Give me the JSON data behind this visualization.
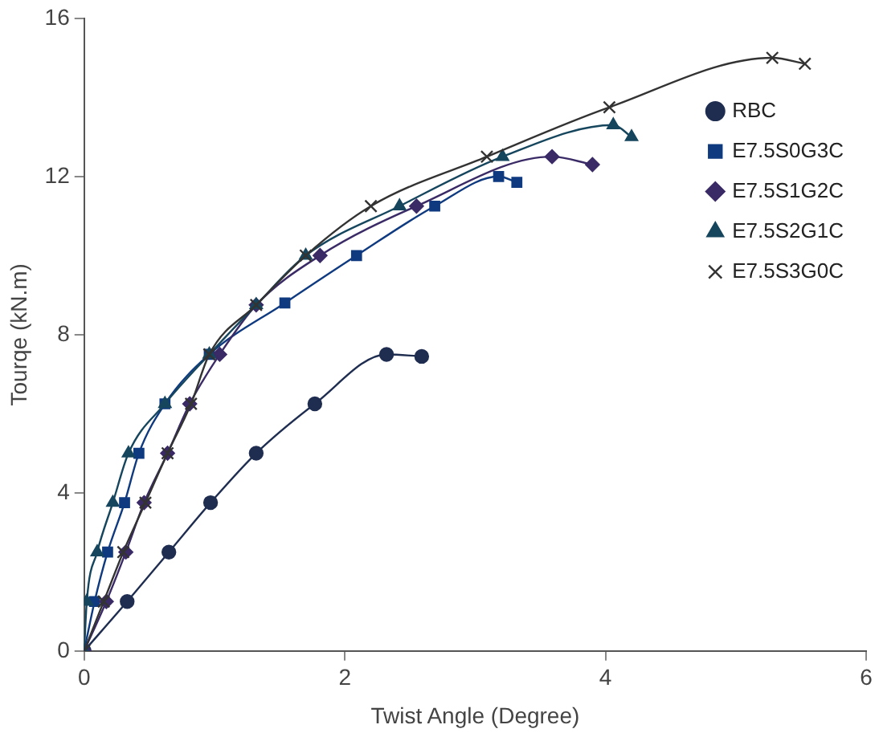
{
  "chart_data": {
    "type": "line",
    "xlabel": "Twist Angle (Degree)",
    "ylabel": "Tourqe (kN.m)",
    "xlim": [
      0,
      6
    ],
    "xticks": [
      0,
      2,
      4,
      6
    ],
    "ylim": [
      0,
      16
    ],
    "yticks": [
      0,
      4,
      8,
      12,
      16
    ],
    "grid": false,
    "legend": "right",
    "line_style": "solid",
    "series": [
      {
        "name": "RBC",
        "color": "#1f2d50",
        "marker": "circle",
        "x": [
          0,
          0.33,
          0.65,
          0.97,
          1.32,
          1.77,
          2.32,
          2.59
        ],
        "values": [
          0,
          1.25,
          2.5,
          3.75,
          5,
          6.25,
          7.5,
          7.45
        ]
      },
      {
        "name": "E7.5S0G3C",
        "color": "#0f3a80",
        "marker": "square",
        "x": [
          0,
          0.08,
          0.18,
          0.31,
          0.42,
          0.62,
          0.96,
          1.54,
          2.09,
          2.69,
          3.18,
          3.32
        ],
        "values": [
          0,
          1.25,
          2.5,
          3.75,
          5,
          6.25,
          7.5,
          8.8,
          10,
          11.25,
          12,
          11.85
        ]
      },
      {
        "name": "E7.5S1G2C",
        "color": "#3a2a66",
        "marker": "diamond",
        "x": [
          0,
          0.17,
          0.32,
          0.46,
          0.64,
          0.81,
          1.04,
          1.32,
          1.81,
          2.55,
          3.59,
          3.9
        ],
        "values": [
          0,
          1.25,
          2.5,
          3.75,
          5,
          6.25,
          7.5,
          8.75,
          10,
          11.25,
          12.5,
          12.3
        ]
      },
      {
        "name": "E7.5S2G1C",
        "color": "#16465e",
        "marker": "triangle",
        "x": [
          0,
          0.02,
          0.1,
          0.22,
          0.34,
          0.62,
          0.96,
          1.32,
          1.7,
          2.42,
          3.21,
          4.06,
          4.2
        ],
        "values": [
          0,
          1.25,
          2.5,
          3.75,
          5,
          6.25,
          7.5,
          8.75,
          10,
          11.25,
          12.5,
          13.3,
          13
        ]
      },
      {
        "name": "E7.5S3G0C",
        "color": "#333333",
        "marker": "cross",
        "x": [
          0,
          0.15,
          0.3,
          0.47,
          0.64,
          0.82,
          0.96,
          1.32,
          1.7,
          2.2,
          3.09,
          4.03,
          5.28,
          5.53
        ],
        "values": [
          0,
          1.25,
          2.5,
          3.75,
          5,
          6.25,
          7.5,
          8.75,
          10,
          11.25,
          12.5,
          13.75,
          15,
          14.85
        ]
      }
    ]
  }
}
